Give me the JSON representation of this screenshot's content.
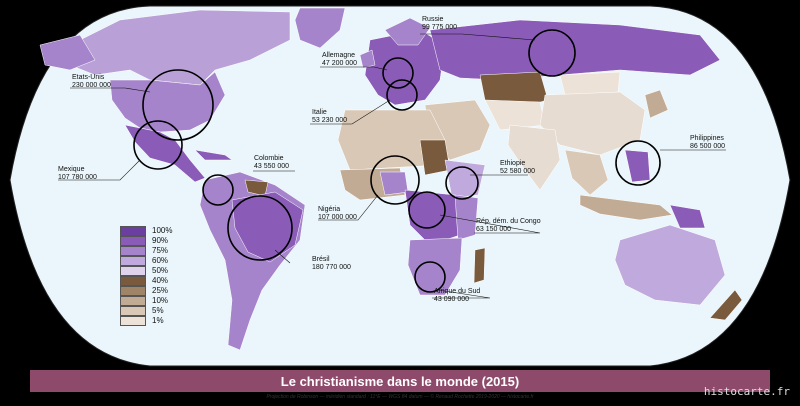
{
  "title": "Le christianisme dans le monde (2015)",
  "credit": "Projection de Robinson — méridien standard : 11°E — WGS 84 datum — © Renaud Rochette 2019-2020 — histocarte.fr",
  "brand": "histocarte.fr",
  "colors": {
    "ocean": "#eaf6fb",
    "land_light": "#e6dcd2",
    "land_tan": "#c9b29a",
    "land_brown": "#8a6a48",
    "purple_dark": "#7f52ad",
    "purple_mid": "#9b78c4",
    "purple_light": "#c4b0de",
    "purple_pale": "#dcd0ec"
  },
  "legend": [
    {
      "label": "100%",
      "color": "#6b3fa0"
    },
    {
      "label": "90%",
      "color": "#8a5cb8"
    },
    {
      "label": "75%",
      "color": "#a584cb"
    },
    {
      "label": "60%",
      "color": "#c0a9dc"
    },
    {
      "label": "50%",
      "color": "#ded2ec"
    },
    {
      "label": "40%",
      "color": "#7a5a3c"
    },
    {
      "label": "25%",
      "color": "#a08468"
    },
    {
      "label": "10%",
      "color": "#c2ab94"
    },
    {
      "label": "5%",
      "color": "#d9c8b6"
    },
    {
      "label": "1%",
      "color": "#ece2d8"
    }
  ],
  "countries": [
    {
      "name": "Etats-Unis",
      "value": "230 000 000"
    },
    {
      "name": "Mexique",
      "value": "107 780 000"
    },
    {
      "name": "Colombie",
      "value": "43 550 000"
    },
    {
      "name": "Brésil",
      "value": "180 770 000"
    },
    {
      "name": "Russie",
      "value": "99 775 000"
    },
    {
      "name": "Allemagne",
      "value": "47 200 000"
    },
    {
      "name": "Italie",
      "value": "53 230 000"
    },
    {
      "name": "Nigéria",
      "value": "107 000 000"
    },
    {
      "name": "Ethiopie",
      "value": "52 580 000"
    },
    {
      "name": "Rép. dém. du Congo",
      "value": "63 150 000"
    },
    {
      "name": "Afrique du Sud",
      "value": "43 090 000"
    },
    {
      "name": "Philippines",
      "value": "86 500 000"
    }
  ]
}
